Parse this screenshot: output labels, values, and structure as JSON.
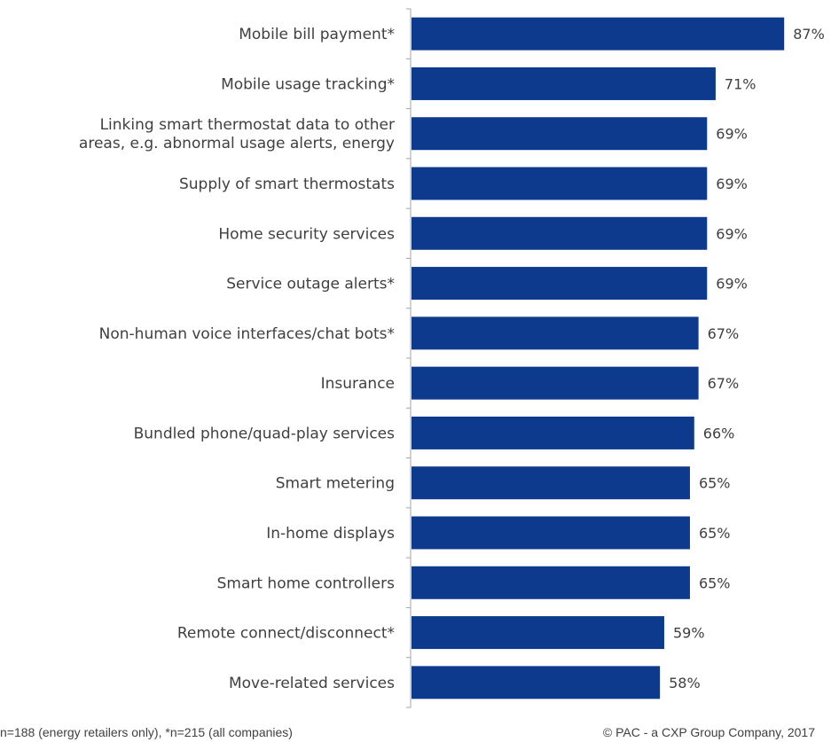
{
  "chart_data": {
    "type": "bar",
    "orientation": "horizontal",
    "categories": [
      "Mobile bill payment*",
      "Mobile usage tracking*",
      "Linking smart thermostat data to other areas, e.g. abnormal usage alerts, energy",
      "Supply of smart thermostats",
      "Home security services",
      "Service outage alerts*",
      "Non-human voice interfaces/chat bots*",
      "Insurance",
      "Bundled phone/quad-play services",
      "Smart metering",
      "In-home displays",
      "Smart home controllers",
      "Remote connect/disconnect*",
      "Move-related services"
    ],
    "category_lines": [
      [
        "Mobile bill payment*"
      ],
      [
        "Mobile usage tracking*"
      ],
      [
        "Linking smart thermostat data to other",
        "areas, e.g. abnormal usage alerts, energy"
      ],
      [
        "Supply of smart thermostats"
      ],
      [
        "Home security services"
      ],
      [
        "Service outage alerts*"
      ],
      [
        "Non-human voice interfaces/chat bots*"
      ],
      [
        "Insurance"
      ],
      [
        "Bundled phone/quad-play services"
      ],
      [
        "Smart metering"
      ],
      [
        "In-home displays"
      ],
      [
        "Smart home controllers"
      ],
      [
        "Remote connect/disconnect*"
      ],
      [
        "Move-related services"
      ]
    ],
    "values": [
      87,
      71,
      69,
      69,
      69,
      69,
      67,
      67,
      66,
      65,
      65,
      65,
      59,
      58
    ],
    "value_labels": [
      "87%",
      "71%",
      "69%",
      "69%",
      "69%",
      "69%",
      "67%",
      "67%",
      "66%",
      "65%",
      "65%",
      "65%",
      "59%",
      "58%"
    ],
    "xlim": [
      0,
      100
    ],
    "bar_color": "#0d3a8c",
    "grid": false,
    "legend": "none"
  },
  "footnote": {
    "left": "n=188 (energy retailers only), *n=215  (all companies)",
    "right": "© PAC - a CXP Group Company, 2017"
  }
}
